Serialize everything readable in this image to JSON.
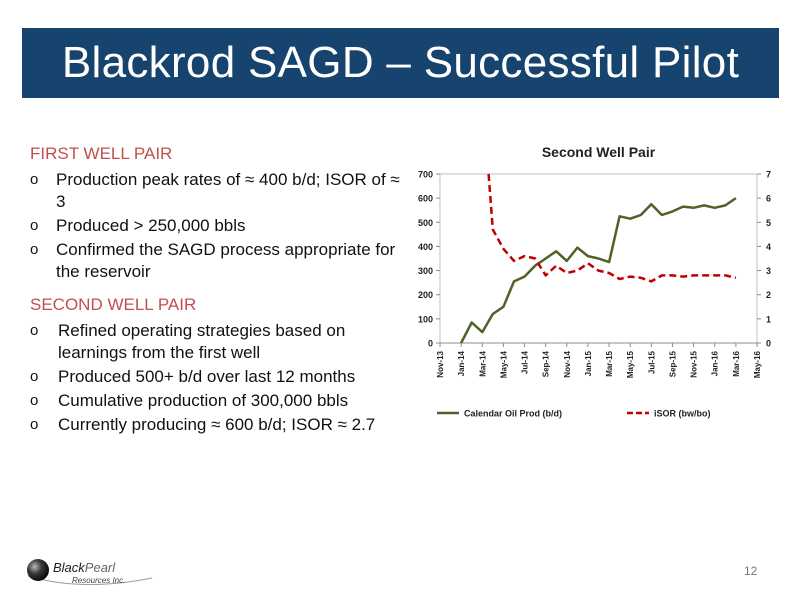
{
  "slide": {
    "title": "Blackrod SAGD – Successful Pilot",
    "page_number": "12"
  },
  "sections": [
    {
      "heading": "FIRST WELL PAIR",
      "items": [
        "Production peak rates of ≈ 400 b/d; ISOR of ≈ 3",
        "Produced > 250,000 bbls",
        "Confirmed the SAGD process appropriate for the reservoir"
      ]
    },
    {
      "heading": "SECOND WELL PAIR",
      "items": [
        "Refined operating strategies based on learnings from the first well",
        "Produced 500+ b/d over last 12 months",
        "Cumulative production of 300,000 bbls",
        "Currently producing ≈ 600 b/d; ISOR ≈ 2.7"
      ]
    }
  ],
  "bullet_glyph": "o",
  "logo": {
    "name_part1": "Black",
    "name_part2": "Pearl",
    "subtitle": "Resources Inc."
  },
  "chart_data": {
    "type": "line",
    "title": "Second Well Pair",
    "xlabel": "",
    "ylabel": "",
    "y2label": "",
    "categories": [
      "Nov-13",
      "Jan-14",
      "Mar-14",
      "May-14",
      "Jul-14",
      "Sep-14",
      "Nov-14",
      "Jan-15",
      "Mar-15",
      "May-15",
      "Jul-15",
      "Sep-15",
      "Nov-15",
      "Jan-16",
      "Mar-16",
      "May-16"
    ],
    "ylim": [
      0,
      700
    ],
    "y_ticks": [
      0,
      100,
      200,
      300,
      400,
      500,
      600,
      700
    ],
    "y2lim": [
      0,
      7
    ],
    "y2_ticks": [
      0,
      1,
      2,
      3,
      4,
      5,
      6,
      7
    ],
    "series": [
      {
        "name": "Calendar Oil Prod (b/d)",
        "axis": "left",
        "color": "#4f6228",
        "dash": "solid",
        "x": [
          1,
          1.5,
          2,
          2.5,
          3,
          3.5,
          4,
          4.5,
          5,
          5.5,
          6,
          6.5,
          7,
          7.5,
          8,
          8.5,
          9,
          9.5,
          10,
          10.5,
          11,
          11.5,
          12,
          12.5,
          13,
          13.5,
          14
        ],
        "values": [
          0,
          85,
          45,
          120,
          150,
          255,
          275,
          320,
          350,
          380,
          340,
          395,
          360,
          350,
          335,
          525,
          515,
          530,
          575,
          530,
          545,
          565,
          560,
          570,
          560,
          570,
          600
        ]
      },
      {
        "name": "iSOR (bw/bo)",
        "axis": "right",
        "color": "#c00000",
        "dash": "dashed",
        "x": [
          2.3,
          2.5,
          3,
          3.5,
          4,
          4.5,
          5,
          5.5,
          6,
          6.5,
          7,
          7.5,
          8,
          8.5,
          9,
          9.5,
          10,
          10.5,
          11,
          11.5,
          12,
          12.5,
          13,
          13.5,
          14
        ],
        "values": [
          7.0,
          4.7,
          3.9,
          3.4,
          3.6,
          3.5,
          2.8,
          3.2,
          2.9,
          3.0,
          3.3,
          3.0,
          2.9,
          2.65,
          2.75,
          2.7,
          2.55,
          2.8,
          2.8,
          2.75,
          2.8,
          2.8,
          2.8,
          2.8,
          2.7
        ]
      }
    ],
    "legend_position": "bottom",
    "grid": false
  }
}
